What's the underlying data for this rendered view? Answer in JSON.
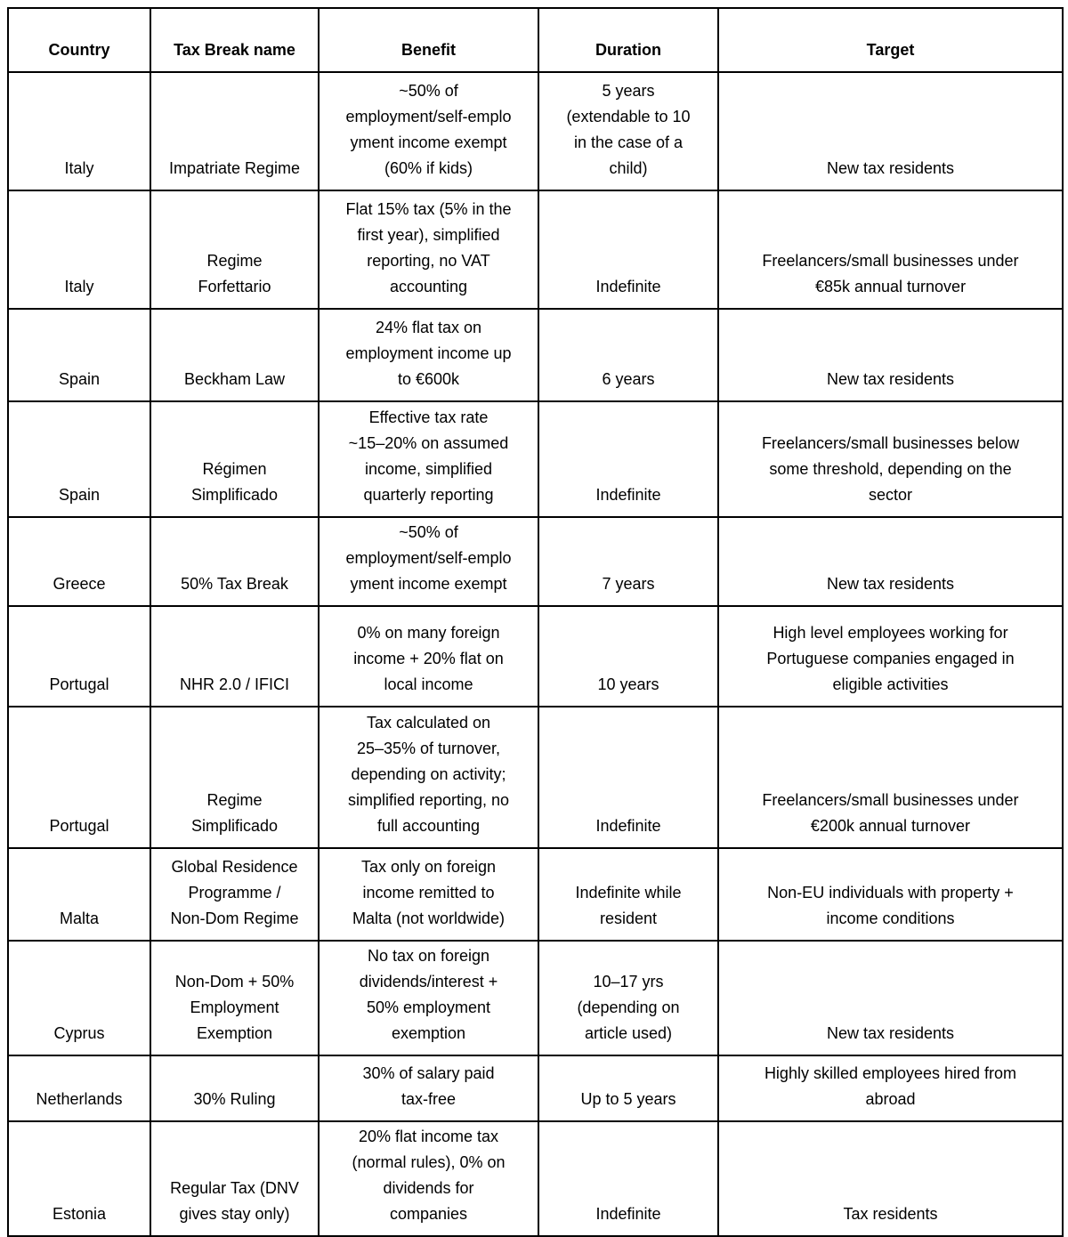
{
  "colors": {
    "background": "#ffffff",
    "border": "#000000",
    "text": "#000000"
  },
  "table": {
    "columns": [
      "Country",
      "Tax Break name",
      "Benefit",
      "Duration",
      "Target"
    ],
    "rows": [
      {
        "country": "Italy",
        "tax_break_name": "Impatriate Regime",
        "benefit": "~50% of\nemployment/self-emplo\nyment income exempt\n(60% if kids)",
        "duration": "5 years\n(extendable to 10\nin the case of a\nchild)",
        "target": "New tax residents"
      },
      {
        "country": "Italy",
        "tax_break_name": "Regime\nForfettario",
        "benefit": "Flat 15% tax (5% in the\nfirst year), simplified\nreporting, no VAT\naccounting",
        "duration": "Indefinite",
        "target": "Freelancers/small businesses under\n€85k annual turnover"
      },
      {
        "country": "Spain",
        "tax_break_name": "Beckham Law",
        "benefit": "24% flat tax on\nemployment income up\nto €600k",
        "duration": "6 years",
        "target": "New tax residents"
      },
      {
        "country": "Spain",
        "tax_break_name": "Régimen\nSimplificado",
        "benefit": "Effective tax rate\n~15–20% on assumed\nincome, simplified\nquarterly reporting",
        "duration": "Indefinite",
        "target": "Freelancers/small businesses below\nsome threshold, depending on the\nsector"
      },
      {
        "country": "Greece",
        "tax_break_name": "50% Tax Break",
        "benefit": "~50% of\nemployment/self-emplo\nyment income exempt",
        "duration": "7 years",
        "target": "New tax residents"
      },
      {
        "country": "Portugal",
        "tax_break_name": "NHR 2.0 / IFICI",
        "benefit": "0% on many foreign\nincome + 20% flat on\nlocal income",
        "duration": "10 years",
        "target": "High level employees working for\nPortuguese companies engaged in\neligible activities"
      },
      {
        "country": "Portugal",
        "tax_break_name": "Regime\nSimplificado",
        "benefit": "Tax calculated on\n25–35% of turnover,\ndepending on activity;\nsimplified reporting, no\nfull accounting",
        "duration": "Indefinite",
        "target": "Freelancers/small businesses under\n€200k annual turnover"
      },
      {
        "country": "Malta",
        "tax_break_name": "Global Residence\nProgramme /\nNon-Dom Regime",
        "benefit": "Tax only on foreign\nincome remitted to\nMalta (not worldwide)",
        "duration": "Indefinite while\nresident",
        "target": "Non-EU individuals with property +\nincome conditions"
      },
      {
        "country": "Cyprus",
        "tax_break_name": "Non-Dom + 50%\nEmployment\nExemption",
        "benefit": "No tax on foreign\ndividends/interest +\n50% employment\nexemption",
        "duration": "10–17 yrs\n(depending on\narticle used)",
        "target": "New tax residents"
      },
      {
        "country": "Netherlands",
        "tax_break_name": "30% Ruling",
        "benefit": "30% of salary paid\ntax-free",
        "duration": "Up to 5 years",
        "target": "Highly skilled employees hired from\nabroad"
      },
      {
        "country": "Estonia",
        "tax_break_name": "Regular Tax (DNV\ngives stay only)",
        "benefit": "20% flat income tax\n(normal rules), 0% on\ndividends for\ncompanies",
        "duration": "Indefinite",
        "target": "Tax residents"
      }
    ]
  }
}
